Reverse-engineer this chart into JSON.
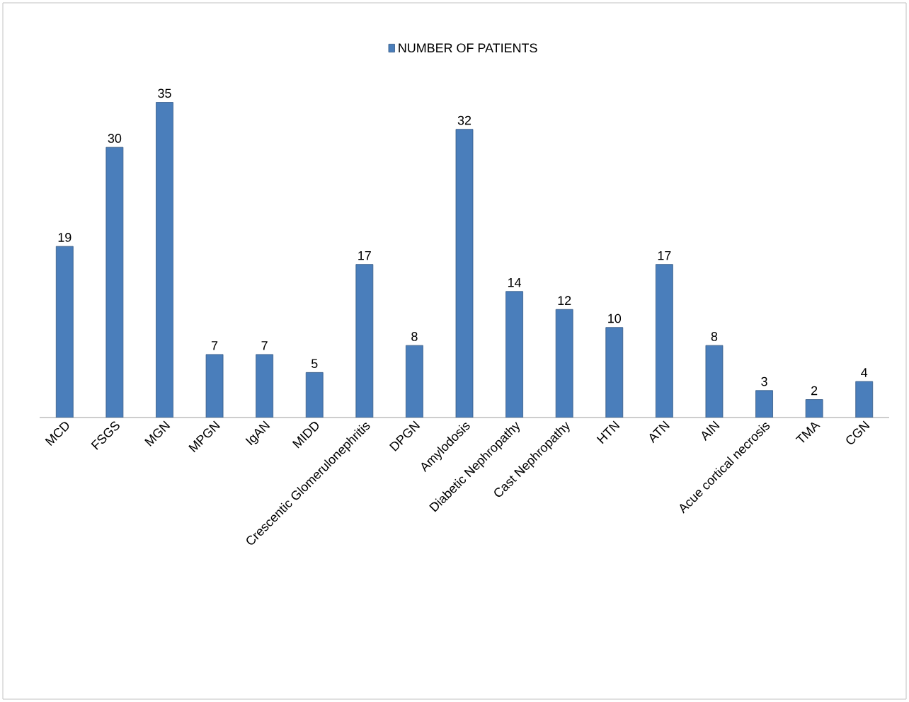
{
  "chart_data": {
    "type": "bar",
    "categories": [
      "MCD",
      "FSGS",
      "MGN",
      "MPGN",
      "IgAN",
      "MIDD",
      "Crescentic Glomerulonephritis",
      "DPGN",
      "Amylodosis",
      "Diabetic Nephropathy",
      "Cast Nephropathy",
      "HTN",
      "ATN",
      "AIN",
      "Acue cortical necrosis",
      "TMA",
      "CGN"
    ],
    "series": [
      {
        "name": "NUMBER OF PATIENTS",
        "color": "#4a7ebb",
        "values": [
          19,
          30,
          35,
          7,
          7,
          5,
          17,
          8,
          32,
          14,
          12,
          10,
          17,
          8,
          3,
          2,
          4
        ]
      }
    ],
    "data_labels": true,
    "legend": "top"
  }
}
